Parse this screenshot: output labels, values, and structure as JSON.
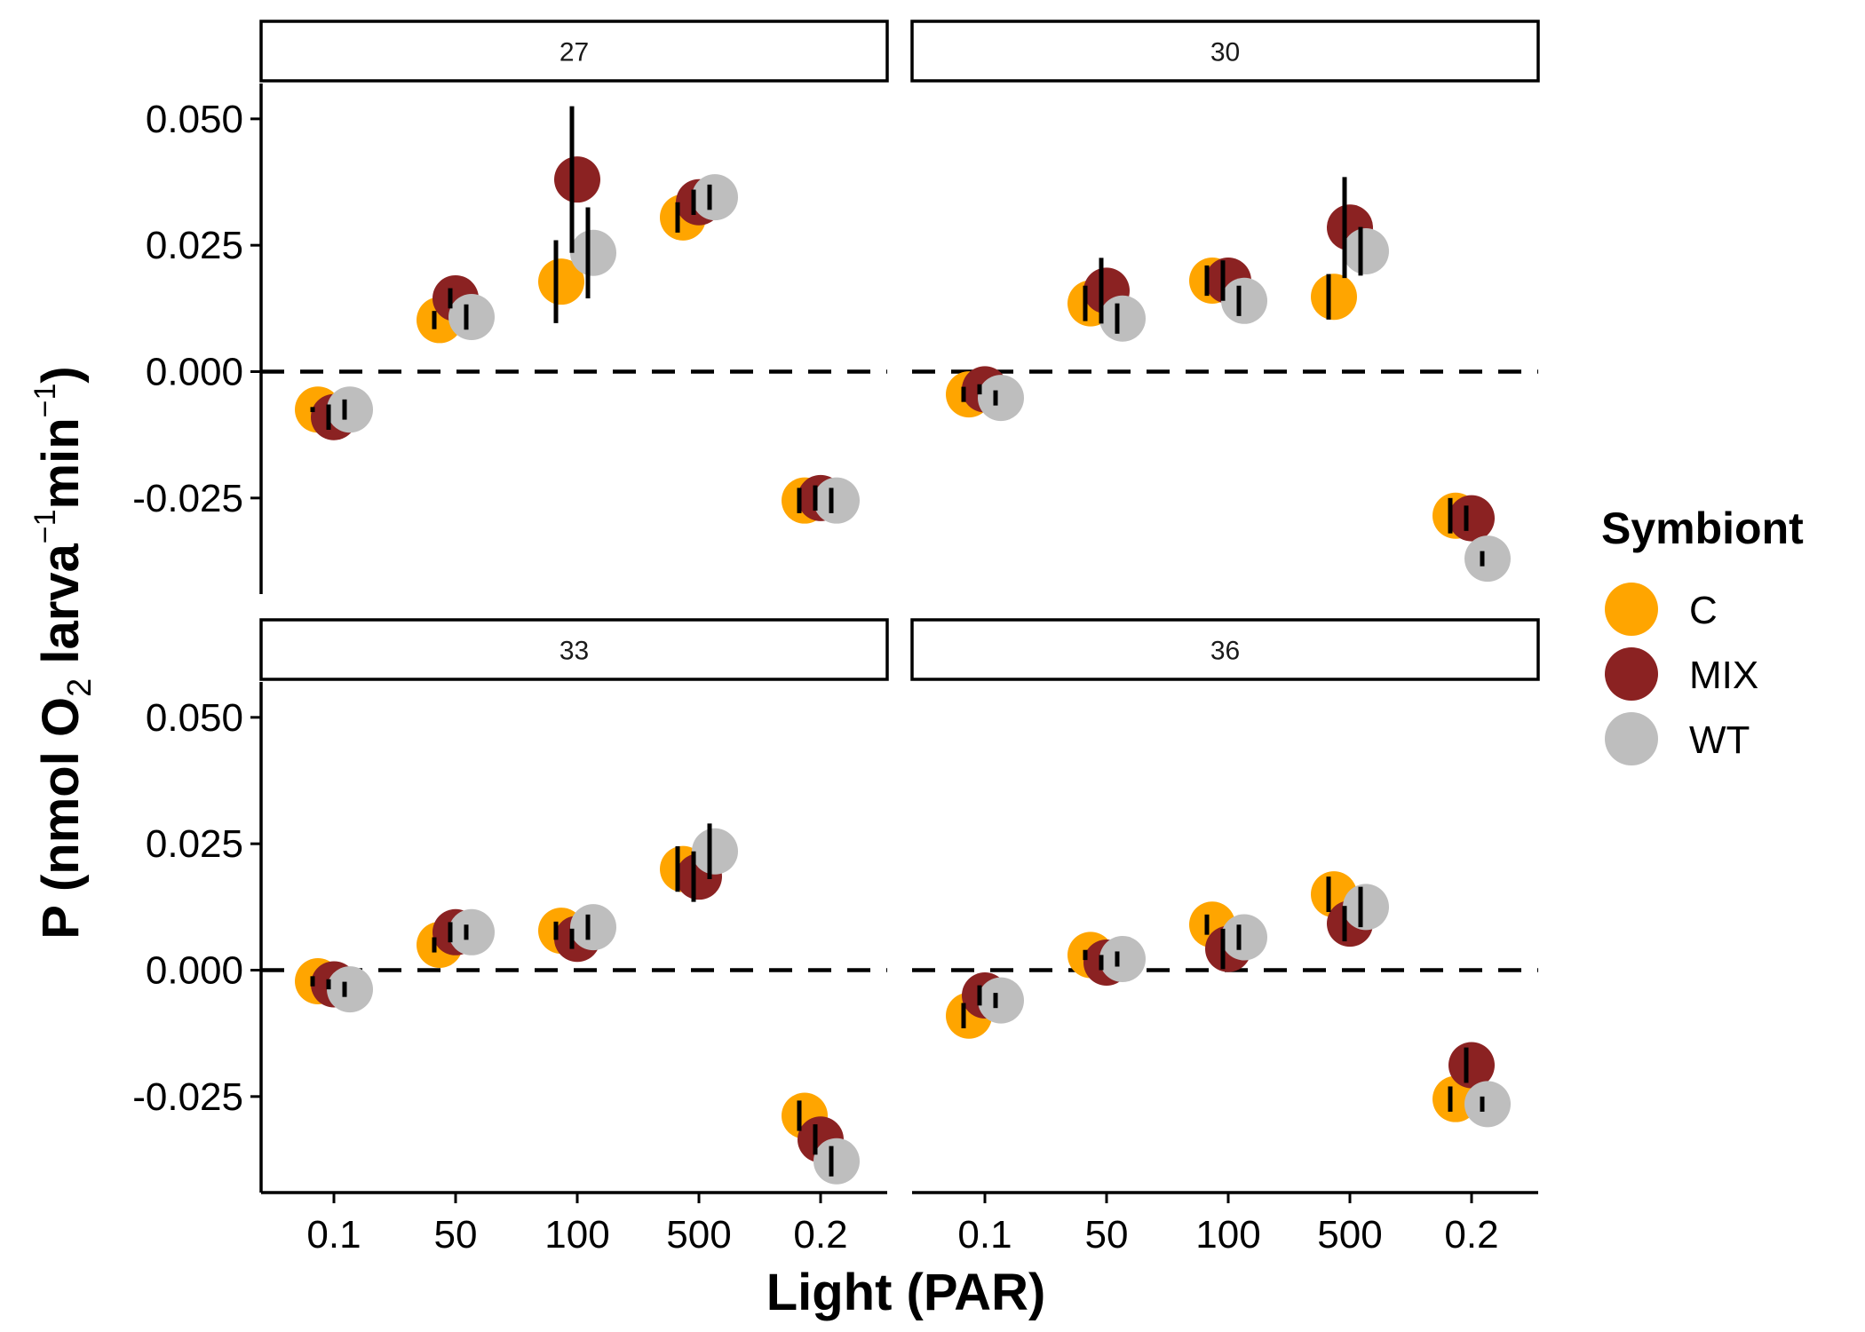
{
  "chart_data": {
    "type": "scatter",
    "xlabel": "Light (PAR)",
    "ylabel": {
      "parts": [
        "P (nmol O",
        "2",
        " larva",
        "−1",
        "min",
        "−1",
        ")"
      ]
    },
    "categories": [
      "0.1",
      "50",
      "100",
      "500",
      "0.2"
    ],
    "y_ticks": [
      "0.050",
      "0.025",
      "0.000",
      "-0.025"
    ],
    "y_tick_values": [
      0.05,
      0.025,
      0.0,
      -0.025
    ],
    "ylim": [
      -0.044,
      0.057
    ],
    "reference_line": 0,
    "legend": {
      "title": "Symbiont",
      "position": "right",
      "entries": [
        {
          "name": "C",
          "color": "#FFA500"
        },
        {
          "name": "MIX",
          "color": "#8B2222"
        },
        {
          "name": "WT",
          "color": "#BEBEBE"
        }
      ]
    },
    "panels": [
      {
        "label": "27",
        "series": [
          {
            "name": "C",
            "values": [
              -0.0075,
              0.0102,
              0.0178,
              0.0305,
              -0.0255
            ],
            "errors": [
              0.0005,
              0.0018,
              0.0082,
              0.003,
              0.0025
            ]
          },
          {
            "name": "MIX",
            "values": [
              -0.009,
              0.0145,
              0.038,
              0.0335,
              -0.025
            ],
            "errors": [
              0.0025,
              0.002,
              0.0145,
              0.0025,
              0.0025
            ]
          },
          {
            "name": "WT",
            "values": [
              -0.0075,
              0.0108,
              0.0235,
              0.0345,
              -0.0255
            ],
            "errors": [
              0.002,
              0.0025,
              0.009,
              0.0025,
              0.0025
            ]
          }
        ]
      },
      {
        "label": "30",
        "series": [
          {
            "name": "C",
            "values": [
              -0.0045,
              0.0135,
              0.018,
              0.0148,
              -0.0285
            ],
            "errors": [
              0.0015,
              0.0035,
              0.003,
              0.0045,
              0.0035
            ]
          },
          {
            "name": "MIX",
            "values": [
              -0.0035,
              0.016,
              0.018,
              0.0285,
              -0.029
            ],
            "errors": [
              0.001,
              0.0065,
              0.004,
              0.01,
              0.0025
            ]
          },
          {
            "name": "WT",
            "values": [
              -0.0052,
              0.0105,
              0.014,
              0.0238,
              -0.037
            ],
            "errors": [
              0.0015,
              0.003,
              0.003,
              0.0048,
              0.0015
            ]
          }
        ]
      },
      {
        "label": "33",
        "series": [
          {
            "name": "C",
            "values": [
              -0.0022,
              0.005,
              0.0078,
              0.02,
              -0.0288
            ],
            "errors": [
              0.001,
              0.0015,
              0.0018,
              0.0045,
              0.003
            ]
          },
          {
            "name": "MIX",
            "values": [
              -0.0028,
              0.0075,
              0.0062,
              0.0185,
              -0.0335
            ],
            "errors": [
              0.001,
              0.002,
              0.002,
              0.005,
              0.003
            ]
          },
          {
            "name": "WT",
            "values": [
              -0.0038,
              0.0075,
              0.0085,
              0.0235,
              -0.0378
            ],
            "errors": [
              0.0015,
              0.0015,
              0.0025,
              0.0055,
              0.003
            ]
          }
        ]
      },
      {
        "label": "36",
        "series": [
          {
            "name": "C",
            "values": [
              -0.009,
              0.003,
              0.009,
              0.015,
              -0.0255
            ],
            "errors": [
              0.0025,
              0.001,
              0.002,
              0.0035,
              0.0025
            ]
          },
          {
            "name": "MIX",
            "values": [
              -0.005,
              0.0015,
              0.0042,
              0.0092,
              -0.0188
            ],
            "errors": [
              0.002,
              0.0015,
              0.004,
              0.0035,
              0.0035
            ]
          },
          {
            "name": "WT",
            "values": [
              -0.006,
              0.0022,
              0.0065,
              0.0125,
              -0.0265
            ],
            "errors": [
              0.0015,
              0.0015,
              0.0025,
              0.004,
              0.0015
            ]
          }
        ]
      }
    ]
  }
}
